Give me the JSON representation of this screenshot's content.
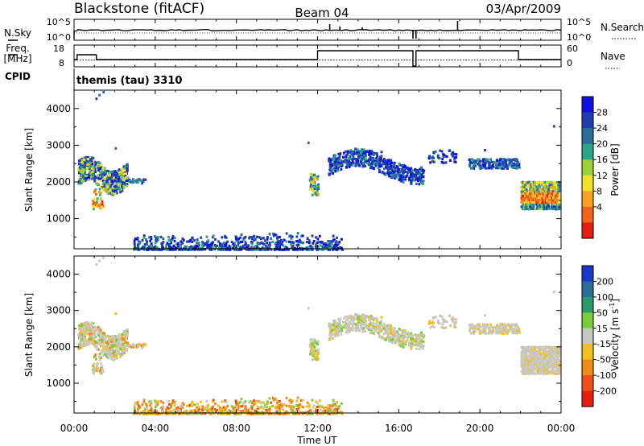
{
  "header": {
    "station": "Blackstone (fitACF)",
    "beam": "Beam 04",
    "date": "03/Apr/2009"
  },
  "panels": {
    "nsky": {
      "label": "N.Sky",
      "right_label": "N.Search",
      "left_ticks": [
        "10^5",
        "10^0"
      ],
      "right_ticks": [
        "10^5",
        "10^0"
      ]
    },
    "freq": {
      "label_top": "Freq.",
      "label_bottom": "[MHz]",
      "right_label": "Nave",
      "left_ticks": [
        "18",
        "8"
      ],
      "right_ticks": [
        "60",
        "0"
      ]
    },
    "cpid": {
      "label": "CPID",
      "text": "themis (tau) 3310"
    }
  },
  "chart_data": [
    {
      "type": "heatmap",
      "name": "power",
      "ylabel": "Slant Range [km]",
      "xlabel": "",
      "xlim_hours": [
        0,
        24
      ],
      "ylim": [
        180,
        4500
      ],
      "y_ticks": [
        "1000",
        "2000",
        "3000",
        "4000"
      ],
      "colorbar": {
        "label": "Power [dB]",
        "ticks": [
          "4",
          "8",
          "12",
          "16",
          "20",
          "24",
          "28"
        ],
        "colors": [
          "#1010e0",
          "#1f3fb0",
          "#2a6c9a",
          "#2aa58a",
          "#9ad13a",
          "#f2e12a",
          "#f5a01f",
          "#f0641a",
          "#e51e10"
        ]
      },
      "regions": [
        {
          "t": [
            0.0,
            2.6
          ],
          "r": [
            1300,
            2750
          ],
          "level": "mixed-high"
        },
        {
          "t": [
            2.5,
            3.5
          ],
          "r": [
            2000,
            2150
          ],
          "level": "low"
        },
        {
          "t": [
            11.6,
            12.0
          ],
          "r": [
            1600,
            2250
          ],
          "level": "mixed"
        },
        {
          "t": [
            12.5,
            17.2
          ],
          "r": [
            1900,
            2950
          ],
          "level": "low"
        },
        {
          "t": [
            17.5,
            18.5
          ],
          "r": [
            2600,
            2850
          ],
          "level": "low"
        },
        {
          "t": [
            19.5,
            21.9
          ],
          "r": [
            2300,
            2650
          ],
          "level": "low"
        },
        {
          "t": [
            22.0,
            24.0
          ],
          "r": [
            1300,
            2000
          ],
          "level": "high"
        },
        {
          "t": [
            3.0,
            13.0
          ],
          "r": [
            180,
            700
          ],
          "level": "low"
        }
      ]
    },
    {
      "type": "heatmap",
      "name": "velocity",
      "ylabel": "Slant Range [km]",
      "xlabel": "Time UT",
      "xlim_hours": [
        0,
        24
      ],
      "ylim": [
        180,
        4500
      ],
      "x_ticks": [
        "00:00",
        "04:00",
        "08:00",
        "12:00",
        "16:00",
        "20:00",
        "00:00"
      ],
      "y_ticks": [
        "1000",
        "2000",
        "3000",
        "4000"
      ],
      "colorbar": {
        "label_main": "Velocity [m s",
        "label_exp": "-1",
        "label_end": "]",
        "ticks": [
          "200",
          "100",
          "50",
          "15",
          "-15",
          "-50",
          "-100",
          "-200"
        ],
        "colors": [
          "#1838c8",
          "#2a6c9a",
          "#2a9a6a",
          "#7acc3a",
          "#c8c8c0",
          "#f2c01f",
          "#f08a1a",
          "#f0501a",
          "#e51e10"
        ]
      }
    }
  ]
}
